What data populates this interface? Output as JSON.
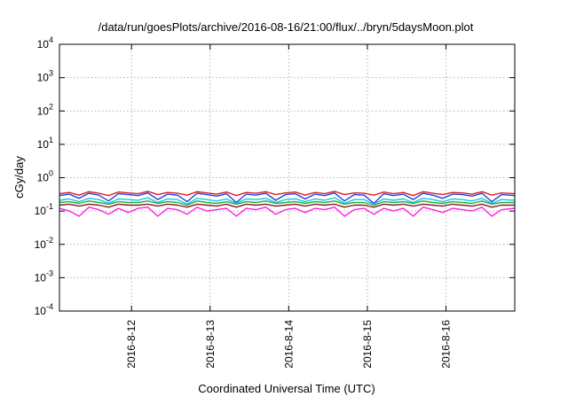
{
  "chart_data": {
    "type": "line",
    "title": "/data/run/goesPlots/archive/2016-08-16/21:00/flux/../bryn/5daysMoon.plot",
    "xlabel": "Coordinated Universal Time (UTC)",
    "ylabel": "cGy/day",
    "yscale": "log",
    "ylim": [
      0.0001,
      10000
    ],
    "xlim": [
      "2016-08-11T02:00",
      "2016-08-16T21:00"
    ],
    "grid": true,
    "legend": "none",
    "y_ticks": [
      {
        "base": "10",
        "exp": "-4",
        "value": 0.0001
      },
      {
        "base": "10",
        "exp": "-3",
        "value": 0.001
      },
      {
        "base": "10",
        "exp": "-2",
        "value": 0.01
      },
      {
        "base": "10",
        "exp": "-1",
        "value": 0.1
      },
      {
        "base": "10",
        "exp": "0",
        "value": 1
      },
      {
        "base": "10",
        "exp": "1",
        "value": 10
      },
      {
        "base": "10",
        "exp": "2",
        "value": 100
      },
      {
        "base": "10",
        "exp": "3",
        "value": 1000
      },
      {
        "base": "10",
        "exp": "4",
        "value": 10000
      }
    ],
    "x_ticks": [
      {
        "label": "2016-8-12",
        "value": "2016-08-12T00:00"
      },
      {
        "label": "2016-8-13",
        "value": "2016-08-13T00:00"
      },
      {
        "label": "2016-8-14",
        "value": "2016-08-14T00:00"
      },
      {
        "label": "2016-8-15",
        "value": "2016-08-15T00:00"
      },
      {
        "label": "2016-8-16",
        "value": "2016-08-16T00:00"
      }
    ],
    "series_x": [
      "2016-08-11T02:00",
      "2016-08-11T05:00",
      "2016-08-11T08:00",
      "2016-08-11T11:00",
      "2016-08-11T14:00",
      "2016-08-11T17:00",
      "2016-08-11T20:00",
      "2016-08-11T23:00",
      "2016-08-12T02:00",
      "2016-08-12T05:00",
      "2016-08-12T08:00",
      "2016-08-12T11:00",
      "2016-08-12T14:00",
      "2016-08-12T17:00",
      "2016-08-12T20:00",
      "2016-08-12T23:00",
      "2016-08-13T02:00",
      "2016-08-13T05:00",
      "2016-08-13T08:00",
      "2016-08-13T11:00",
      "2016-08-13T14:00",
      "2016-08-13T17:00",
      "2016-08-13T20:00",
      "2016-08-13T23:00",
      "2016-08-14T02:00",
      "2016-08-14T05:00",
      "2016-08-14T08:00",
      "2016-08-14T11:00",
      "2016-08-14T14:00",
      "2016-08-14T17:00",
      "2016-08-14T20:00",
      "2016-08-14T23:00",
      "2016-08-15T02:00",
      "2016-08-15T05:00",
      "2016-08-15T08:00",
      "2016-08-15T11:00",
      "2016-08-15T14:00",
      "2016-08-15T17:00",
      "2016-08-15T20:00",
      "2016-08-15T23:00",
      "2016-08-16T02:00",
      "2016-08-16T05:00",
      "2016-08-16T08:00",
      "2016-08-16T11:00",
      "2016-08-16T14:00",
      "2016-08-16T17:00",
      "2016-08-16T21:00"
    ],
    "series": [
      {
        "color": "#e02020",
        "values": [
          0.33,
          0.36,
          0.3,
          0.38,
          0.34,
          0.29,
          0.37,
          0.35,
          0.33,
          0.39,
          0.31,
          0.36,
          0.34,
          0.3,
          0.38,
          0.35,
          0.32,
          0.37,
          0.29,
          0.36,
          0.34,
          0.38,
          0.31,
          0.35,
          0.37,
          0.3,
          0.36,
          0.33,
          0.39,
          0.31,
          0.35,
          0.34,
          0.3,
          0.37,
          0.33,
          0.36,
          0.29,
          0.38,
          0.34,
          0.31,
          0.36,
          0.35,
          0.32,
          0.38,
          0.3,
          0.35,
          0.33
        ]
      },
      {
        "color": "#2040e0",
        "values": [
          0.29,
          0.32,
          0.24,
          0.34,
          0.3,
          0.2,
          0.33,
          0.31,
          0.29,
          0.35,
          0.22,
          0.32,
          0.3,
          0.19,
          0.34,
          0.31,
          0.28,
          0.33,
          0.18,
          0.32,
          0.3,
          0.34,
          0.21,
          0.31,
          0.33,
          0.23,
          0.32,
          0.29,
          0.35,
          0.2,
          0.31,
          0.3,
          0.17,
          0.33,
          0.29,
          0.32,
          0.22,
          0.34,
          0.3,
          0.24,
          0.32,
          0.31,
          0.28,
          0.34,
          0.19,
          0.31,
          0.29
        ]
      },
      {
        "color": "#18c8e0",
        "values": [
          0.21,
          0.23,
          0.19,
          0.24,
          0.22,
          0.17,
          0.23,
          0.22,
          0.21,
          0.25,
          0.18,
          0.23,
          0.22,
          0.16,
          0.24,
          0.22,
          0.2,
          0.23,
          0.17,
          0.23,
          0.22,
          0.24,
          0.18,
          0.22,
          0.23,
          0.19,
          0.23,
          0.21,
          0.25,
          0.17,
          0.22,
          0.22,
          0.16,
          0.23,
          0.21,
          0.23,
          0.18,
          0.24,
          0.22,
          0.19,
          0.23,
          0.22,
          0.2,
          0.24,
          0.17,
          0.22,
          0.21
        ]
      },
      {
        "color": "#20b040",
        "values": [
          0.18,
          0.19,
          0.17,
          0.2,
          0.18,
          0.16,
          0.19,
          0.18,
          0.18,
          0.2,
          0.17,
          0.19,
          0.18,
          0.15,
          0.2,
          0.18,
          0.17,
          0.19,
          0.16,
          0.19,
          0.18,
          0.2,
          0.17,
          0.18,
          0.19,
          0.17,
          0.19,
          0.18,
          0.2,
          0.16,
          0.18,
          0.18,
          0.15,
          0.19,
          0.18,
          0.19,
          0.17,
          0.2,
          0.18,
          0.17,
          0.19,
          0.18,
          0.17,
          0.2,
          0.16,
          0.18,
          0.18
        ]
      },
      {
        "color": "#8a1a2a",
        "values": [
          0.15,
          0.16,
          0.14,
          0.16,
          0.15,
          0.13,
          0.16,
          0.15,
          0.15,
          0.16,
          0.14,
          0.16,
          0.15,
          0.13,
          0.16,
          0.15,
          0.14,
          0.16,
          0.13,
          0.16,
          0.15,
          0.16,
          0.14,
          0.15,
          0.16,
          0.14,
          0.16,
          0.15,
          0.16,
          0.13,
          0.15,
          0.15,
          0.13,
          0.16,
          0.15,
          0.16,
          0.14,
          0.16,
          0.15,
          0.14,
          0.16,
          0.15,
          0.14,
          0.16,
          0.13,
          0.15,
          0.15
        ]
      },
      {
        "color": "#ff20e0",
        "values": [
          0.12,
          0.1,
          0.07,
          0.13,
          0.11,
          0.08,
          0.12,
          0.09,
          0.12,
          0.13,
          0.07,
          0.12,
          0.11,
          0.08,
          0.13,
          0.1,
          0.11,
          0.12,
          0.07,
          0.12,
          0.11,
          0.13,
          0.08,
          0.11,
          0.12,
          0.09,
          0.12,
          0.11,
          0.13,
          0.07,
          0.11,
          0.12,
          0.08,
          0.12,
          0.1,
          0.12,
          0.07,
          0.13,
          0.11,
          0.09,
          0.12,
          0.11,
          0.1,
          0.13,
          0.07,
          0.11,
          0.12
        ]
      }
    ]
  }
}
